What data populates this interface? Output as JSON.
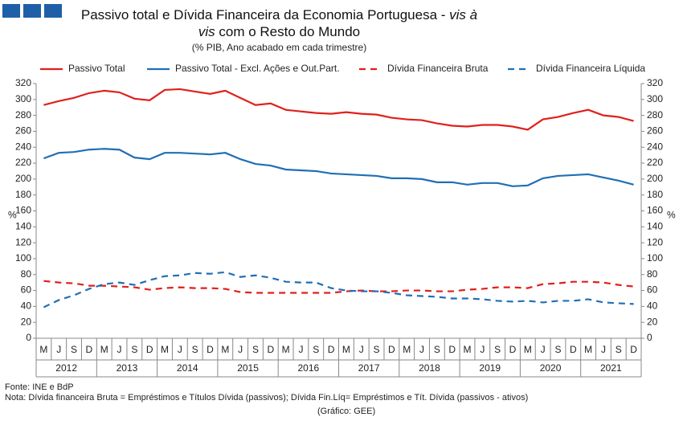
{
  "chart_data": {
    "type": "line",
    "title": {
      "before": "Passivo total e Dívida Financeira da Economia Portuguesa - ",
      "italic": "vis à vis",
      "after": " com o Resto do Mundo"
    },
    "subtitle": "(% PIB, Ano acabado em cada trimestre)",
    "y_label": "%",
    "categories": [
      "M",
      "J",
      "S",
      "D",
      "M",
      "J",
      "S",
      "D",
      "M",
      "J",
      "S",
      "D",
      "M",
      "J",
      "S",
      "D",
      "M",
      "J",
      "S",
      "D",
      "M",
      "J",
      "S",
      "D",
      "M",
      "J",
      "S",
      "D",
      "M",
      "J",
      "S",
      "D",
      "M",
      "J",
      "S",
      "D",
      "M",
      "J",
      "S",
      "D"
    ],
    "years": [
      "2012",
      "2013",
      "2014",
      "2015",
      "2016",
      "2017",
      "2018",
      "2019",
      "2020",
      "2021"
    ],
    "ylim": [
      0,
      320
    ],
    "yticks": [
      0,
      20,
      40,
      60,
      80,
      100,
      120,
      140,
      160,
      180,
      200,
      220,
      240,
      260,
      280,
      300,
      320
    ],
    "y2lim": [
      0,
      320
    ],
    "y2ticks": [
      0,
      20,
      40,
      60,
      80,
      100,
      120,
      140,
      160,
      180,
      200,
      220,
      240,
      260,
      280,
      300,
      320
    ],
    "grid": false,
    "legend": "top",
    "series": [
      {
        "name": "Passivo Total",
        "color": "#e0201b",
        "dash": false,
        "values": [
          293,
          298,
          302,
          308,
          311,
          309,
          301,
          299,
          312,
          313,
          310,
          307,
          311,
          302,
          293,
          295,
          287,
          285,
          283,
          282,
          284,
          282,
          281,
          277,
          275,
          274,
          270,
          267,
          266,
          268,
          268,
          266,
          262,
          275,
          278,
          283,
          287,
          280,
          278,
          273
        ]
      },
      {
        "name": "Passivo Total - Excl. Ações e Out.Part.",
        "color": "#1f6fb5",
        "dash": false,
        "values": [
          226,
          233,
          234,
          237,
          238,
          237,
          227,
          225,
          233,
          233,
          232,
          231,
          233,
          225,
          219,
          217,
          212,
          211,
          210,
          207,
          206,
          205,
          204,
          201,
          201,
          200,
          196,
          196,
          193,
          195,
          195,
          191,
          192,
          201,
          204,
          205,
          206,
          202,
          198,
          193
        ]
      },
      {
        "name": "Dívida Financeira Bruta",
        "color": "#e0201b",
        "dash": true,
        "values": [
          72,
          70,
          69,
          66,
          66,
          65,
          64,
          61,
          63,
          64,
          63,
          63,
          62,
          58,
          57,
          57,
          57,
          57,
          57,
          57,
          59,
          60,
          59,
          59,
          60,
          60,
          59,
          59,
          61,
          62,
          64,
          64,
          63,
          68,
          69,
          71,
          71,
          70,
          67,
          65
        ]
      },
      {
        "name": "Dívida Financeira Líquida",
        "color": "#1f6fb5",
        "dash": true,
        "values": [
          39,
          48,
          54,
          62,
          68,
          70,
          67,
          73,
          78,
          79,
          82,
          81,
          83,
          77,
          79,
          76,
          71,
          70,
          70,
          63,
          60,
          59,
          59,
          57,
          54,
          53,
          52,
          50,
          50,
          49,
          47,
          46,
          47,
          45,
          47,
          47,
          49,
          45,
          44,
          43
        ]
      }
    ],
    "source": "Fonte: INE e BdP",
    "note": "Nota: Dívida financeira Bruta = Empréstimos e Títulos Dívida (passivos); Dívida Fin.Líq= Empréstimos e Tít. Dívida (passivos - ativos)",
    "credit": "(Gráfico: GEE)"
  }
}
